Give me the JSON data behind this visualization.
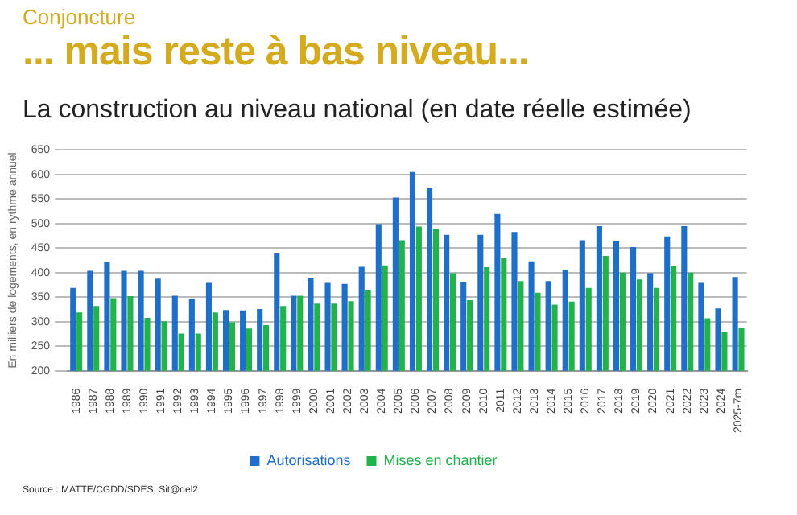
{
  "chart_data": {
    "type": "bar",
    "title": "... mais reste à bas niveau...",
    "subtitle": "La construction au niveau national (en date réelle estimée)",
    "ylabel": "En milliers de logements, en rythme annuel",
    "annotations": [
      "Conjoncture",
      "Source : MATTE/CGDD/SDES, Sit@del2"
    ],
    "categories": [
      "1986",
      "1987",
      "1988",
      "1989",
      "1990",
      "1991",
      "1992",
      "1993",
      "1994",
      "1995",
      "1996",
      "1997",
      "1998",
      "1999",
      "2000",
      "2001",
      "2002",
      "2003",
      "2004",
      "2005",
      "2006",
      "2007",
      "2008",
      "2009",
      "2010",
      "2011",
      "2012",
      "2013",
      "2014",
      "2015",
      "2016",
      "2017",
      "2018",
      "2019",
      "2020",
      "2021",
      "2022",
      "2023",
      "2024",
      "2025-7m"
    ],
    "series": [
      {
        "name": "Autorisations",
        "color": "#1f6fc8",
        "values": [
          369,
          404,
          422,
          404,
          404,
          388,
          353,
          347,
          379,
          324,
          323,
          326,
          439,
          353,
          390,
          379,
          377,
          412,
          499,
          553,
          605,
          572,
          477,
          381,
          477,
          520,
          483,
          423,
          383,
          406,
          466,
          495,
          465,
          452,
          399,
          474,
          495,
          379,
          327,
          391
        ]
      },
      {
        "name": "Mises en chantier",
        "color": "#22b24c",
        "values": [
          319,
          332,
          348,
          352,
          308,
          301,
          276,
          276,
          319,
          299,
          286,
          293,
          332,
          353,
          337,
          337,
          342,
          364,
          415,
          466,
          494,
          489,
          399,
          344,
          411,
          430,
          383,
          359,
          335,
          341,
          369,
          434,
          400,
          386,
          369,
          414,
          400,
          307,
          279,
          288
        ]
      }
    ],
    "ylim": [
      200,
      650
    ],
    "yticks": [
      200,
      250,
      300,
      350,
      400,
      450,
      500,
      550,
      600,
      650
    ],
    "grid": "y",
    "legend": "bottom"
  }
}
